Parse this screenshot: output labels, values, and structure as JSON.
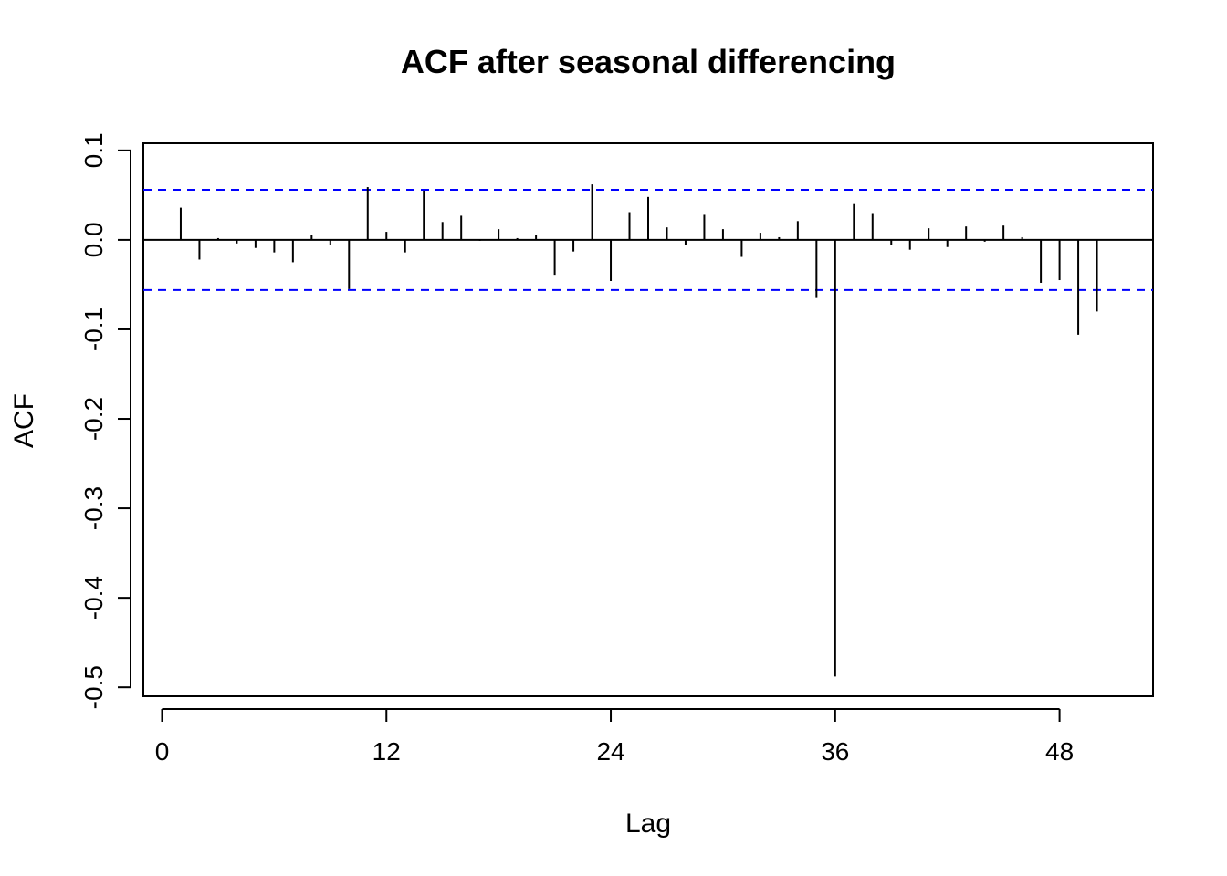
{
  "chart_data": {
    "type": "bar",
    "title": "ACF after seasonal differencing",
    "xlabel": "Lag",
    "ylabel": "ACF",
    "xlim": [
      -1,
      53
    ],
    "ylim": [
      -0.51,
      0.108
    ],
    "xticks": [
      0,
      12,
      24,
      36,
      48
    ],
    "yticks": [
      -0.5,
      -0.4,
      -0.3,
      -0.2,
      -0.1,
      0.0,
      0.1
    ],
    "ytick_labels": [
      "-0.5",
      "-0.4",
      "-0.3",
      "-0.2",
      "-0.1",
      "0.0",
      "0.1"
    ],
    "confidence_bounds": [
      0.056,
      -0.056
    ],
    "confidence_color": "#0000ff",
    "grid": false,
    "series": [
      {
        "lags": [
          1,
          2,
          3,
          4,
          5,
          6,
          7,
          8,
          9,
          10,
          11,
          12,
          13,
          14,
          15,
          16,
          17,
          18,
          19,
          20,
          21,
          22,
          23,
          24,
          25,
          26,
          27,
          28,
          29,
          30,
          31,
          32,
          33,
          34,
          35,
          36,
          37,
          38,
          39,
          40,
          41,
          42,
          43,
          44,
          45,
          46,
          47,
          48,
          49,
          50
        ],
        "values": [
          0.036,
          -0.022,
          0.002,
          -0.004,
          -0.009,
          -0.014,
          -0.025,
          0.005,
          -0.006,
          -0.055,
          0.059,
          0.009,
          -0.014,
          0.055,
          0.02,
          0.027,
          -0.001,
          0.012,
          0.002,
          0.005,
          -0.039,
          -0.013,
          0.062,
          -0.046,
          0.031,
          0.048,
          0.014,
          -0.006,
          0.028,
          0.012,
          -0.019,
          0.008,
          0.003,
          0.021,
          -0.065,
          -0.488,
          0.04,
          0.03,
          -0.006,
          -0.011,
          0.013,
          -0.008,
          0.015,
          -0.002,
          0.016,
          0.003,
          -0.048,
          -0.045,
          -0.106,
          -0.08
        ]
      }
    ]
  }
}
